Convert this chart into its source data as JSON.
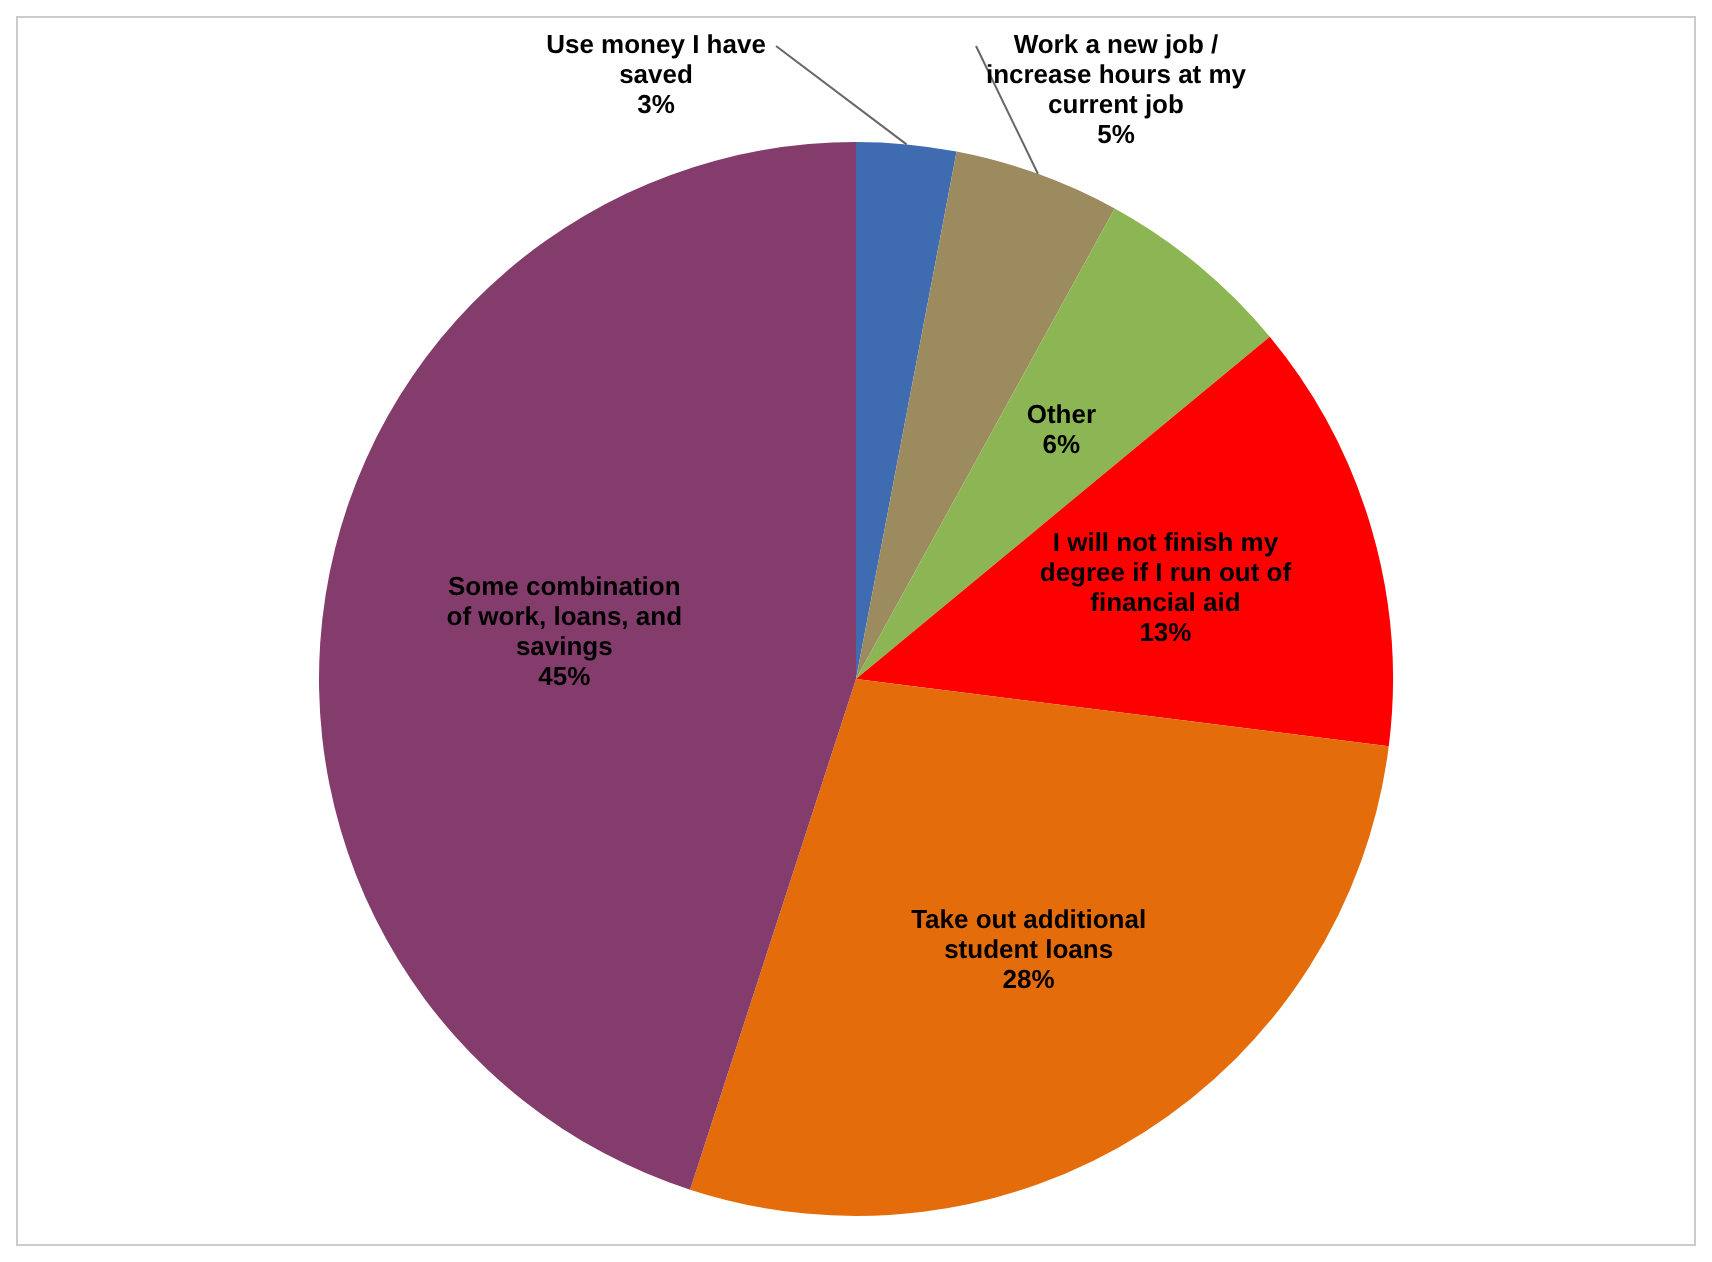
{
  "chart_data": {
    "type": "pie",
    "categories": [
      "Use money I have saved",
      "Work a new job / increase hours at my current job",
      "Other",
      "I will not finish my degree if I run out of financial aid",
      "Take out additional student loans",
      "Some combination of work, loans, and savings"
    ],
    "values": [
      3,
      5,
      6,
      13,
      28,
      45
    ],
    "colors": [
      "#3f6cb0",
      "#9c8b5e",
      "#8cb553",
      "#fe0000",
      "#e46c0a",
      "#843c6c"
    ],
    "value_labels": [
      "3%",
      "5%",
      "6%",
      "13%",
      "28%",
      "45%"
    ],
    "legend": false
  }
}
